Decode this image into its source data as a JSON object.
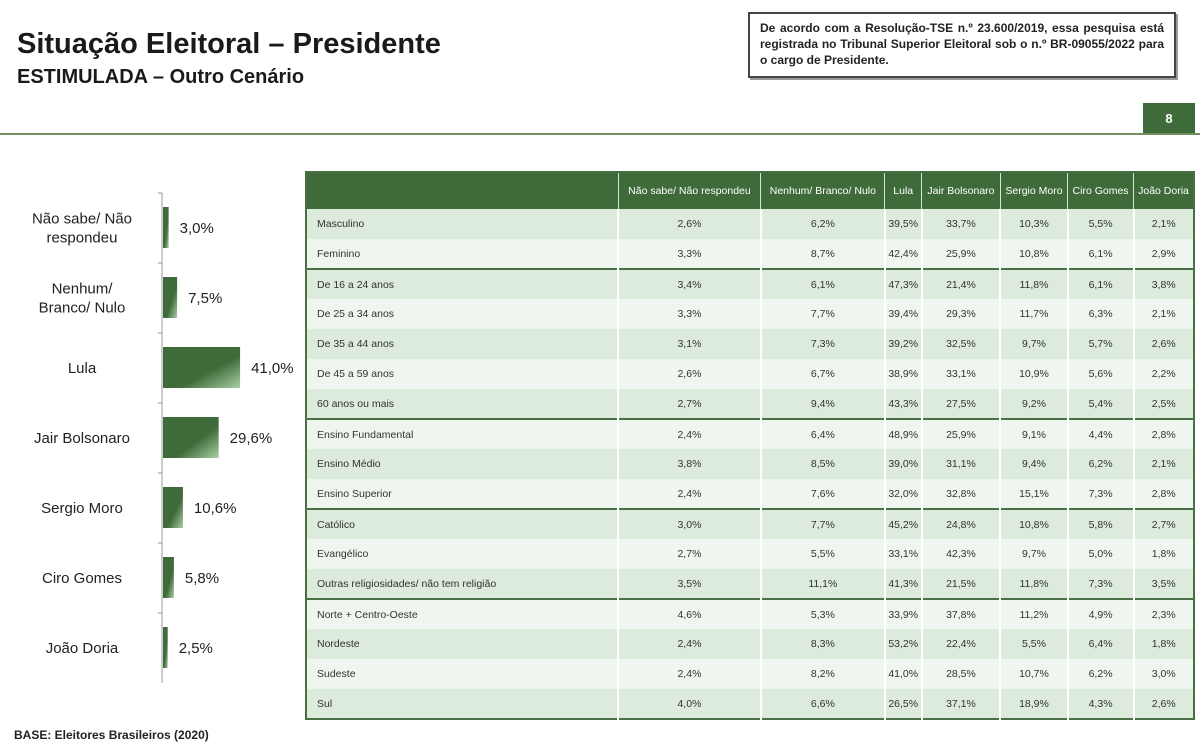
{
  "header": {
    "title": "Situação Eleitoral – Presidente",
    "subtitle": "ESTIMULADA – Outro Cenário",
    "notice": "De acordo com a Resolução-TSE n.º 23.600/2019, essa pesquisa está registrada no Tribunal Superior Eleitoral sob o n.º BR-09055/2022 para o cargo de Presidente.",
    "page_number": "8"
  },
  "footer": {
    "base": "BASE: Eleitores Brasileiros (2020)"
  },
  "colors": {
    "bar": "#3f6b3a",
    "header": "#3f6b3a",
    "row_odd": "#dcebdb",
    "row_even": "#eff6ef"
  },
  "chart_data": [
    {
      "type": "bar",
      "orientation": "horizontal",
      "categories": [
        "Não sabe/ Não respondeu",
        "Nenhum/ Branco/ Nulo",
        "Lula",
        "Jair Bolsonaro",
        "Sergio Moro",
        "Ciro Gomes",
        "João Doria"
      ],
      "values": [
        3.0,
        7.5,
        41.0,
        29.6,
        10.6,
        5.8,
        2.5
      ],
      "data_labels": [
        "3,0%",
        "7,5%",
        "41,0%",
        "29,6%",
        "10,6%",
        "5,8%",
        "2,5%"
      ],
      "grid": false
    },
    {
      "type": "table",
      "columns": [
        "Não sabe/ Não respondeu",
        "Nenhum/ Branco/ Nulo",
        "Lula",
        "Jair Bolsonaro",
        "Sergio Moro",
        "Ciro Gomes",
        "João Doria"
      ],
      "groups": [
        [
          {
            "label": "Masculino",
            "values": [
              "2,6%",
              "6,2%",
              "39,5%",
              "33,7%",
              "10,3%",
              "5,5%",
              "2,1%"
            ]
          },
          {
            "label": "Feminino",
            "values": [
              "3,3%",
              "8,7%",
              "42,4%",
              "25,9%",
              "10,8%",
              "6,1%",
              "2,9%"
            ]
          }
        ],
        [
          {
            "label": "De 16 a 24 anos",
            "values": [
              "3,4%",
              "6,1%",
              "47,3%",
              "21,4%",
              "11,8%",
              "6,1%",
              "3,8%"
            ]
          },
          {
            "label": "De 25 a 34 anos",
            "values": [
              "3,3%",
              "7,7%",
              "39,4%",
              "29,3%",
              "11,7%",
              "6,3%",
              "2,1%"
            ]
          },
          {
            "label": "De 35 a 44 anos",
            "values": [
              "3,1%",
              "7,3%",
              "39,2%",
              "32,5%",
              "9,7%",
              "5,7%",
              "2,6%"
            ]
          },
          {
            "label": "De 45 a 59 anos",
            "values": [
              "2,6%",
              "6,7%",
              "38,9%",
              "33,1%",
              "10,9%",
              "5,6%",
              "2,2%"
            ]
          },
          {
            "label": "60 anos ou mais",
            "values": [
              "2,7%",
              "9,4%",
              "43,3%",
              "27,5%",
              "9,2%",
              "5,4%",
              "2,5%"
            ]
          }
        ],
        [
          {
            "label": "Ensino Fundamental",
            "values": [
              "2,4%",
              "6,4%",
              "48,9%",
              "25,9%",
              "9,1%",
              "4,4%",
              "2,8%"
            ]
          },
          {
            "label": "Ensino Médio",
            "values": [
              "3,8%",
              "8,5%",
              "39,0%",
              "31,1%",
              "9,4%",
              "6,2%",
              "2,1%"
            ]
          },
          {
            "label": "Ensino Superior",
            "values": [
              "2,4%",
              "7,6%",
              "32,0%",
              "32,8%",
              "15,1%",
              "7,3%",
              "2,8%"
            ]
          }
        ],
        [
          {
            "label": "Católico",
            "values": [
              "3,0%",
              "7,7%",
              "45,2%",
              "24,8%",
              "10,8%",
              "5,8%",
              "2,7%"
            ]
          },
          {
            "label": "Evangélico",
            "values": [
              "2,7%",
              "5,5%",
              "33,1%",
              "42,3%",
              "9,7%",
              "5,0%",
              "1,8%"
            ]
          },
          {
            "label": "Outras religiosidades/ não tem religião",
            "values": [
              "3,5%",
              "11,1%",
              "41,3%",
              "21,5%",
              "11,8%",
              "7,3%",
              "3,5%"
            ]
          }
        ],
        [
          {
            "label": "Norte + Centro-Oeste",
            "values": [
              "4,6%",
              "5,3%",
              "33,9%",
              "37,8%",
              "11,2%",
              "4,9%",
              "2,3%"
            ]
          },
          {
            "label": "Nordeste",
            "values": [
              "2,4%",
              "8,3%",
              "53,2%",
              "22,4%",
              "5,5%",
              "6,4%",
              "1,8%"
            ]
          },
          {
            "label": "Sudeste",
            "values": [
              "2,4%",
              "8,2%",
              "41,0%",
              "28,5%",
              "10,7%",
              "6,2%",
              "3,0%"
            ]
          },
          {
            "label": "Sul",
            "values": [
              "4,0%",
              "6,6%",
              "26,5%",
              "37,1%",
              "18,9%",
              "4,3%",
              "2,6%"
            ]
          }
        ]
      ]
    }
  ]
}
